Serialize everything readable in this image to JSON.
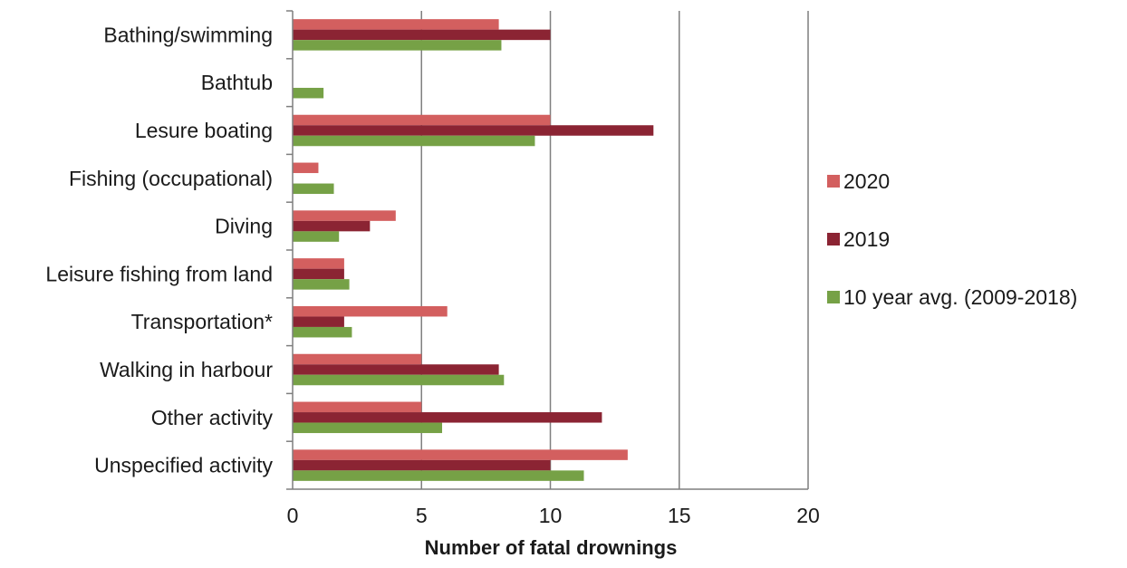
{
  "chart_data": {
    "type": "bar",
    "orientation": "horizontal",
    "categories": [
      "Bathing/swimming",
      "Bathtub",
      "Lesure boating",
      "Fishing (occupational)",
      "Diving",
      "Leisure fishing from land",
      "Transportation*",
      "Walking in harbour",
      "Other activity",
      "Unspecified activity"
    ],
    "series": [
      {
        "name": "2020",
        "color": "#d35f5f",
        "values": [
          8,
          0,
          10,
          1,
          4,
          2,
          6,
          5,
          5,
          13
        ]
      },
      {
        "name": "2019",
        "color": "#8b2433",
        "values": [
          10,
          0,
          14,
          0,
          3,
          2,
          2,
          8,
          12,
          10
        ]
      },
      {
        "name": "10 year avg. (2009-2018)",
        "color": "#76a146",
        "values": [
          8.1,
          1.2,
          9.4,
          1.6,
          1.8,
          2.2,
          2.3,
          8.2,
          5.8,
          11.3
        ]
      }
    ],
    "xlabel": "Number of fatal drownings",
    "ylabel": "",
    "xlim": [
      0,
      20
    ],
    "xticks": [
      0,
      5,
      10,
      15,
      20
    ],
    "grid": "vertical",
    "legend": "right"
  }
}
